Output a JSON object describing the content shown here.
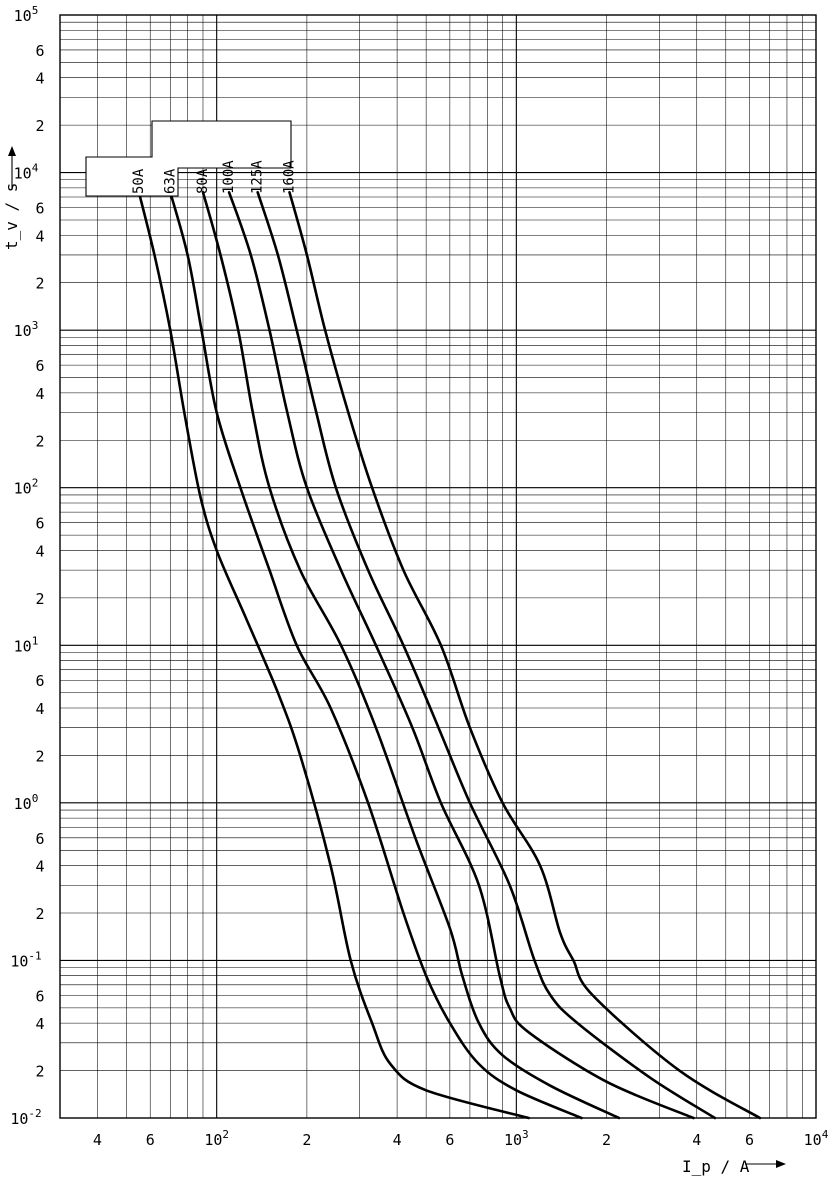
{
  "chart_data": {
    "type": "line",
    "x_scale": "log",
    "y_scale": "log",
    "xlim": [
      30,
      10000
    ],
    "ylim": [
      0.01,
      100000
    ],
    "grid": true,
    "xlabel": "I_p / A",
    "ylabel": "t_v / s",
    "x_tick_labels": [
      {
        "value": 40,
        "mantissa": "4",
        "exp": ""
      },
      {
        "value": 60,
        "mantissa": "6",
        "exp": ""
      },
      {
        "value": 100,
        "mantissa": "10",
        "exp": "2"
      },
      {
        "value": 200,
        "mantissa": "2",
        "exp": ""
      },
      {
        "value": 400,
        "mantissa": "4",
        "exp": ""
      },
      {
        "value": 600,
        "mantissa": "6",
        "exp": ""
      },
      {
        "value": 1000,
        "mantissa": "10",
        "exp": "3"
      },
      {
        "value": 2000,
        "mantissa": "2",
        "exp": ""
      },
      {
        "value": 4000,
        "mantissa": "4",
        "exp": ""
      },
      {
        "value": 6000,
        "mantissa": "6",
        "exp": ""
      },
      {
        "value": 10000,
        "mantissa": "10",
        "exp": "4"
      }
    ],
    "y_tick_labels": [
      {
        "value": 100000,
        "mantissa": "10",
        "exp": "5"
      },
      {
        "value": 60000,
        "mantissa": "6",
        "exp": ""
      },
      {
        "value": 40000,
        "mantissa": "4",
        "exp": ""
      },
      {
        "value": 20000,
        "mantissa": "2",
        "exp": ""
      },
      {
        "value": 10000,
        "mantissa": "10",
        "exp": "4"
      },
      {
        "value": 6000,
        "mantissa": "6",
        "exp": ""
      },
      {
        "value": 4000,
        "mantissa": "4",
        "exp": ""
      },
      {
        "value": 2000,
        "mantissa": "2",
        "exp": ""
      },
      {
        "value": 1000,
        "mantissa": "10",
        "exp": "3"
      },
      {
        "value": 600,
        "mantissa": "6",
        "exp": ""
      },
      {
        "value": 400,
        "mantissa": "4",
        "exp": ""
      },
      {
        "value": 200,
        "mantissa": "2",
        "exp": ""
      },
      {
        "value": 100,
        "mantissa": "10",
        "exp": "2"
      },
      {
        "value": 60,
        "mantissa": "6",
        "exp": ""
      },
      {
        "value": 40,
        "mantissa": "4",
        "exp": ""
      },
      {
        "value": 20,
        "mantissa": "2",
        "exp": ""
      },
      {
        "value": 10,
        "mantissa": "10",
        "exp": "1"
      },
      {
        "value": 6,
        "mantissa": "6",
        "exp": ""
      },
      {
        "value": 4,
        "mantissa": "4",
        "exp": ""
      },
      {
        "value": 2,
        "mantissa": "2",
        "exp": ""
      },
      {
        "value": 1,
        "mantissa": "10",
        "exp": "0"
      },
      {
        "value": 0.6,
        "mantissa": "6",
        "exp": ""
      },
      {
        "value": 0.4,
        "mantissa": "4",
        "exp": ""
      },
      {
        "value": 0.2,
        "mantissa": "2",
        "exp": ""
      },
      {
        "value": 0.1,
        "mantissa": "10",
        "exp": "-1"
      },
      {
        "value": 0.06,
        "mantissa": "6",
        "exp": ""
      },
      {
        "value": 0.04,
        "mantissa": "4",
        "exp": ""
      },
      {
        "value": 0.02,
        "mantissa": "2",
        "exp": ""
      },
      {
        "value": 0.01,
        "mantissa": "10",
        "exp": "-2"
      }
    ],
    "series": [
      {
        "name": "50A",
        "points": [
          [
            55,
            7500
          ],
          [
            62,
            3000
          ],
          [
            70,
            1000
          ],
          [
            78,
            300
          ],
          [
            88,
            90
          ],
          [
            100,
            40
          ],
          [
            125,
            15
          ],
          [
            160,
            5
          ],
          [
            190,
            2
          ],
          [
            240,
            0.4
          ],
          [
            280,
            0.1
          ],
          [
            330,
            0.04
          ],
          [
            380,
            0.022
          ],
          [
            500,
            0.015
          ],
          [
            1100,
            0.01
          ]
        ]
      },
      {
        "name": "63A",
        "points": [
          [
            70,
            7500
          ],
          [
            80,
            3000
          ],
          [
            89,
            1000
          ],
          [
            100,
            300
          ],
          [
            120,
            100
          ],
          [
            150,
            30
          ],
          [
            185,
            10
          ],
          [
            240,
            4
          ],
          [
            320,
            1
          ],
          [
            420,
            0.2
          ],
          [
            500,
            0.08
          ],
          [
            600,
            0.04
          ],
          [
            750,
            0.022
          ],
          [
            1000,
            0.015
          ],
          [
            1650,
            0.01
          ]
        ]
      },
      {
        "name": "80A",
        "points": [
          [
            90,
            7500
          ],
          [
            103,
            3000
          ],
          [
            118,
            1000
          ],
          [
            132,
            300
          ],
          [
            150,
            100
          ],
          [
            190,
            30
          ],
          [
            260,
            10
          ],
          [
            340,
            3
          ],
          [
            460,
            0.6
          ],
          [
            600,
            0.16
          ],
          [
            660,
            0.08
          ],
          [
            750,
            0.04
          ],
          [
            900,
            0.025
          ],
          [
            1300,
            0.016
          ],
          [
            2200,
            0.01
          ]
        ]
      },
      {
        "name": "100A",
        "points": [
          [
            110,
            7500
          ],
          [
            130,
            3000
          ],
          [
            150,
            1000
          ],
          [
            172,
            300
          ],
          [
            200,
            100
          ],
          [
            260,
            30
          ],
          [
            340,
            10
          ],
          [
            450,
            3
          ],
          [
            560,
            1
          ],
          [
            750,
            0.3
          ],
          [
            880,
            0.08
          ],
          [
            950,
            0.05
          ],
          [
            1100,
            0.035
          ],
          [
            2000,
            0.017
          ],
          [
            3900,
            0.01
          ]
        ]
      },
      {
        "name": "125A",
        "points": [
          [
            137,
            7500
          ],
          [
            160,
            3000
          ],
          [
            185,
            1000
          ],
          [
            215,
            300
          ],
          [
            250,
            100
          ],
          [
            320,
            30
          ],
          [
            420,
            10
          ],
          [
            550,
            3
          ],
          [
            700,
            1
          ],
          [
            950,
            0.3
          ],
          [
            1150,
            0.1
          ],
          [
            1300,
            0.06
          ],
          [
            1600,
            0.04
          ],
          [
            2800,
            0.018
          ],
          [
            4600,
            0.01
          ]
        ]
      },
      {
        "name": "160A",
        "points": [
          [
            175,
            7500
          ],
          [
            200,
            3000
          ],
          [
            230,
            1000
          ],
          [
            275,
            300
          ],
          [
            330,
            100
          ],
          [
            420,
            30
          ],
          [
            560,
            10
          ],
          [
            700,
            3
          ],
          [
            900,
            1
          ],
          [
            1200,
            0.4
          ],
          [
            1400,
            0.15
          ],
          [
            1550,
            0.1
          ],
          [
            1800,
            0.06
          ],
          [
            3500,
            0.02
          ],
          [
            6500,
            0.01
          ]
        ]
      }
    ]
  }
}
